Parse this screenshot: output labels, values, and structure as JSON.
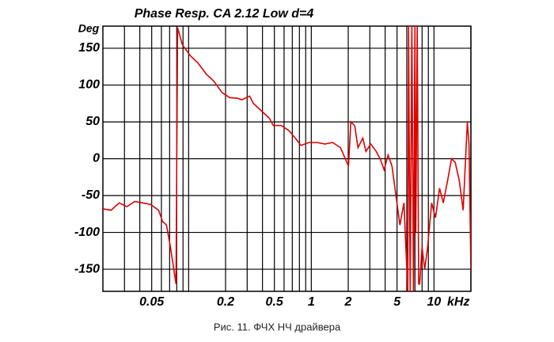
{
  "chart_data": {
    "type": "line",
    "title": "Phase Resp. CA 2.12 Low d=4",
    "y_label": "Deg",
    "x_label": "kHz",
    "caption": "Рис. 11. ФЧХ НЧ драйвера",
    "x_scale": "log",
    "grid": true,
    "color": "#e00000",
    "xlim": [
      0.02,
      20
    ],
    "ylim": [
      -180,
      180
    ],
    "xticks": [
      0.05,
      0.2,
      0.5,
      1,
      2,
      5,
      10
    ],
    "x_grid": [
      0.03,
      0.04,
      0.05,
      0.06,
      0.07,
      0.08,
      0.09,
      0.1,
      0.2,
      0.3,
      0.4,
      0.5,
      0.6,
      0.7,
      0.8,
      0.9,
      1,
      2,
      3,
      4,
      5,
      6,
      7,
      8,
      9,
      10,
      20
    ],
    "yticks": [
      -150,
      -100,
      -50,
      0,
      50,
      100,
      150
    ],
    "x": [
      0.02,
      0.0233,
      0.0271,
      0.0314,
      0.0364,
      0.0423,
      0.049,
      0.0569,
      0.0612,
      0.0659,
      0.0711,
      0.0789,
      0.0813,
      0.0888,
      0.103,
      0.119,
      0.139,
      0.161,
      0.187,
      0.216,
      0.251,
      0.271,
      0.314,
      0.338,
      0.392,
      0.455,
      0.49,
      0.569,
      0.659,
      0.765,
      0.824,
      0.956,
      1.11,
      1.29,
      1.49,
      1.73,
      2.01,
      2.1,
      2.26,
      2.4,
      2.63,
      2.79,
      3.05,
      3.38,
      3.64,
      3.92,
      4.23,
      4.55,
      4.9,
      5.28,
      5.69,
      6.12,
      6.2,
      6.4,
      6.6,
      6.8,
      7.0,
      7.11,
      7.3,
      7.5,
      7.65,
      8.0,
      8.4,
      8.88,
      9.57,
      10.3,
      11.1,
      11.9,
      12.9,
      13.9,
      14.9,
      16.1,
      17.3,
      18.7,
      19.3,
      20
    ],
    "values": [
      -68,
      -70,
      -60,
      -65,
      -58,
      -60,
      -62,
      -70,
      -85,
      -90,
      -120,
      -170,
      178,
      155,
      140,
      130,
      115,
      105,
      90,
      83,
      82,
      80,
      85,
      75,
      65,
      55,
      45,
      45,
      38,
      25,
      18,
      22,
      22,
      20,
      22,
      15,
      -10,
      50,
      45,
      15,
      28,
      10,
      20,
      10,
      0,
      -15,
      5,
      -10,
      -50,
      -90,
      -60,
      -180,
      180,
      -180,
      180,
      -180,
      180,
      -100,
      180,
      -170,
      -170,
      -120,
      -150,
      -120,
      -60,
      -80,
      -40,
      -60,
      -30,
      0,
      -5,
      -30,
      -70,
      50,
      20,
      -150
    ]
  }
}
